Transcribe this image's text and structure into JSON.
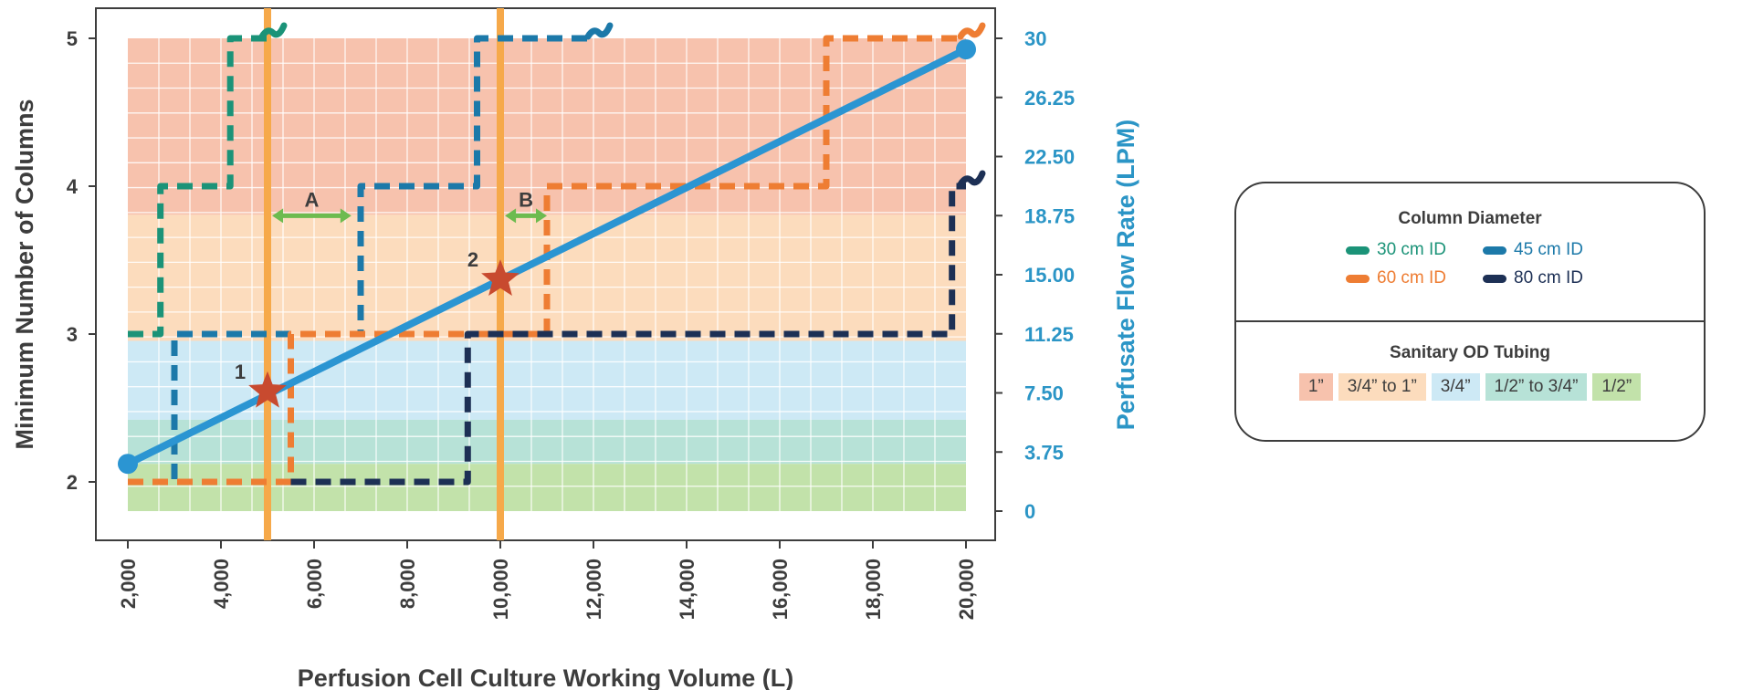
{
  "chart_data": {
    "type": "line",
    "xlabel": "Perfusion Cell Culture Working Volume (L)",
    "ylabel": "Minimum Number of Columns",
    "y2label": "Perfusate Flow Rate (LPM)",
    "xlim": [
      2000,
      20000
    ],
    "x_ticks": [
      "2,000",
      "4,000",
      "6,000",
      "8,000",
      "10,000",
      "12,000",
      "14,000",
      "16,000",
      "18,000",
      "20,000"
    ],
    "ylim": [
      2,
      5
    ],
    "y_ticks": [
      "2",
      "3",
      "4",
      "5"
    ],
    "y2lim": [
      0,
      30
    ],
    "y2_ticks": [
      "0",
      "3.75",
      "7.50",
      "11.25",
      "15.00",
      "18.75",
      "22.50",
      "26.25",
      "30"
    ],
    "flow_line": {
      "name": "Perfusate Flow Rate",
      "color": "#2b95d2",
      "x": [
        2000,
        20000
      ],
      "y2": [
        3,
        29.3
      ]
    },
    "tubing_bands": [
      {
        "label": "1”",
        "color": "#f7c2ad",
        "y2_range": [
          18.8,
          30
        ]
      },
      {
        "label": "3/4” to 1”",
        "color": "#fcdcbd",
        "y2_range": [
          10.8,
          18.8
        ]
      },
      {
        "label": "3/4”",
        "color": "#cde9f5",
        "y2_range": [
          5.8,
          10.8
        ]
      },
      {
        "label": "1/2” to 3/4”",
        "color": "#b7e2d7",
        "y2_range": [
          3.0,
          5.8
        ]
      },
      {
        "label": "1/2”",
        "color": "#c2e2aa",
        "y2_range": [
          0,
          3.0
        ]
      }
    ],
    "series": [
      {
        "name": "30 cm ID",
        "color": "#1b9378",
        "style": "step-dashed",
        "x": [
          2000,
          2700,
          2700,
          4200,
          4200,
          5000
        ],
        "y": [
          3,
          3,
          4,
          4,
          5,
          5
        ],
        "continues": true
      },
      {
        "name": "45 cm ID",
        "color": "#1c79a9",
        "style": "step-dashed",
        "x": [
          2000,
          3000,
          3000,
          7000,
          7000,
          9500,
          9500,
          12000
        ],
        "y": [
          2,
          2,
          3,
          3,
          4,
          4,
          5,
          5
        ],
        "continues": true
      },
      {
        "name": "60 cm ID",
        "color": "#ee7d33",
        "style": "step-dashed",
        "x": [
          2000,
          5500,
          5500,
          11000,
          11000,
          17000,
          17000,
          20000
        ],
        "y": [
          2,
          2,
          3,
          3,
          4,
          4,
          5,
          5
        ],
        "continues": true
      },
      {
        "name": "80 cm ID",
        "color": "#1d3055",
        "style": "step-dashed",
        "x": [
          5500,
          9300,
          9300,
          19700,
          19700,
          20000
        ],
        "y": [
          2,
          2,
          3,
          3,
          4,
          4
        ],
        "continues": true
      }
    ],
    "reference_lines": [
      {
        "x": 5000,
        "color": "#f6a94a"
      },
      {
        "x": 10000,
        "color": "#f6a94a"
      }
    ],
    "markers": [
      {
        "label": "1",
        "x": 5000,
        "y2": 7.6,
        "color": "#c84a2f"
      },
      {
        "label": "2",
        "x": 10000,
        "y2": 14.7,
        "color": "#c84a2f"
      }
    ],
    "spans": [
      {
        "label": "A",
        "x": [
          5100,
          6800
        ],
        "y": 3.8,
        "color": "#6dbb4f"
      },
      {
        "label": "B",
        "x": [
          10100,
          11000
        ],
        "y": 3.8,
        "color": "#6dbb4f"
      }
    ],
    "grid": true
  },
  "legend": {
    "diameter_title": "Column Diameter",
    "diameter_items": [
      {
        "label": "30 cm ID",
        "color": "#1b9378",
        "text_color": "#1b9378"
      },
      {
        "label": "45 cm ID",
        "color": "#1c79a9",
        "text_color": "#1c79a9"
      },
      {
        "label": "60 cm ID",
        "color": "#ee7d33",
        "text_color": "#ee7d33"
      },
      {
        "label": "80 cm ID",
        "color": "#1d3055",
        "text_color": "#1d3055"
      }
    ],
    "tubing_title": "Sanitary OD Tubing",
    "tubing_items": [
      {
        "label": "1”",
        "color": "#f7c2ad"
      },
      {
        "label": "3/4” to 1”",
        "color": "#fcdcbd"
      },
      {
        "label": "3/4”",
        "color": "#cde9f5"
      },
      {
        "label": "1/2” to 3/4”",
        "color": "#b7e2d7"
      },
      {
        "label": "1/2”",
        "color": "#c2e2aa"
      }
    ]
  }
}
